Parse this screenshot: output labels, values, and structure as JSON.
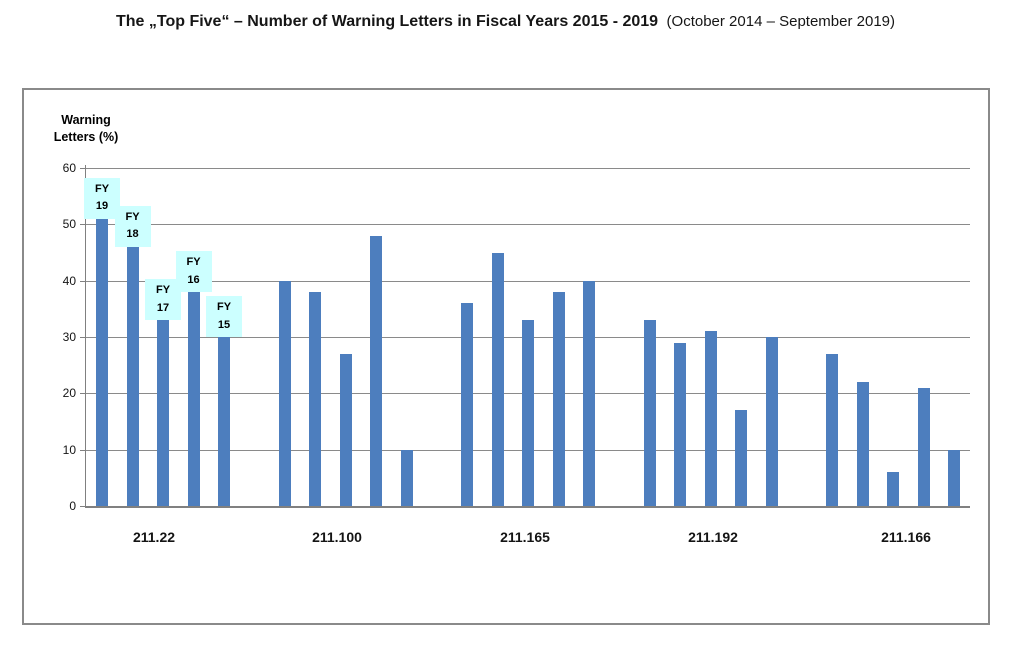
{
  "page": {
    "title_main": "The „Top Five“ – Number of Warning Letters in Fiscal Years 2015 - 2019",
    "title_suffix": "(October 2014 – September 2019)"
  },
  "chart_data": {
    "type": "bar",
    "title": "The „Top Five“ – Number of Warning Letters in Fiscal Years 2015 - 2019 (October 2014 – September 2019)",
    "ylabel": "Warning Letters (%)",
    "ylabel_lines": [
      "Warning",
      "Letters (%)"
    ],
    "xlabel": "",
    "categories": [
      "211.22",
      "211.100",
      "211.165",
      "211.192",
      "211.166"
    ],
    "series": [
      {
        "name": "FY 19",
        "values": [
          51,
          40,
          36,
          33,
          27
        ]
      },
      {
        "name": "FY 18",
        "values": [
          46,
          38,
          45,
          29,
          22
        ]
      },
      {
        "name": "FY 17",
        "values": [
          33,
          27,
          33,
          31,
          6
        ]
      },
      {
        "name": "FY 16",
        "values": [
          38,
          48,
          38,
          17,
          21
        ]
      },
      {
        "name": "FY 15",
        "values": [
          30,
          10,
          40,
          30,
          10
        ]
      }
    ],
    "ylim": [
      0,
      60
    ],
    "yticks": [
      0,
      10,
      20,
      30,
      40,
      50,
      60
    ],
    "grid": true,
    "legend_position": "annotation-boxes-on-first-group",
    "bar_color": "#4D7EBE",
    "gridline_color": "#8a8a8a",
    "annotation_bg": "#CCFFFF"
  }
}
